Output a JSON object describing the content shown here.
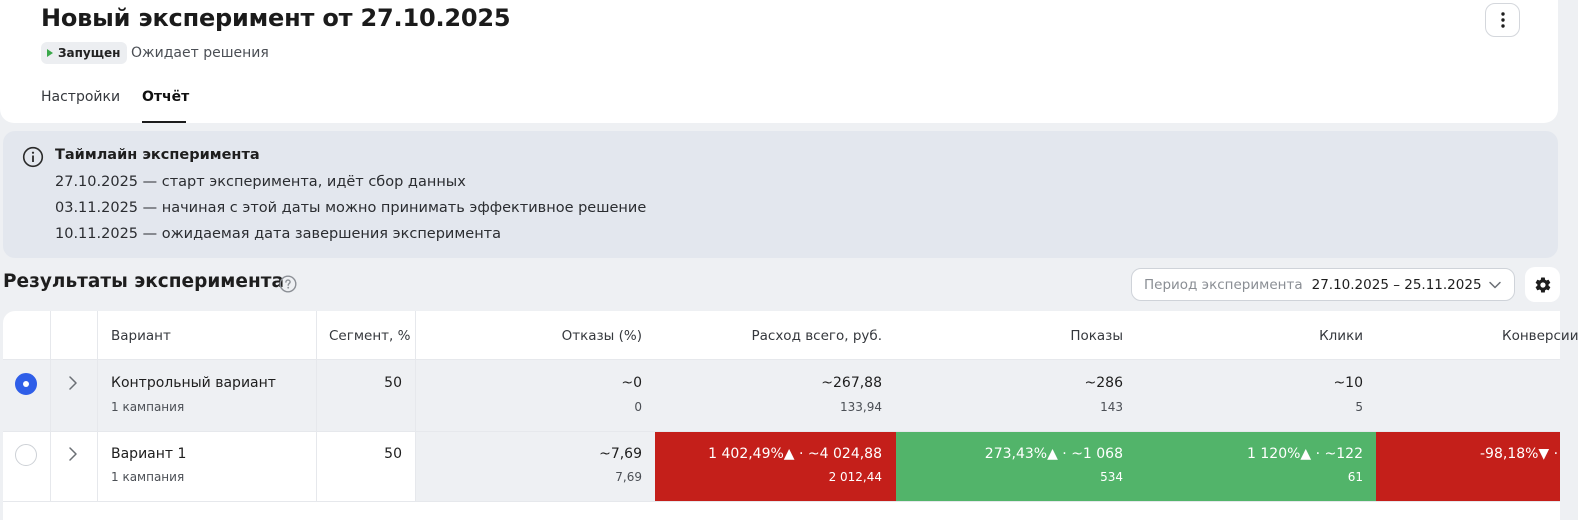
{
  "header": {
    "title": "Новый эксперимент от 27.10.2025",
    "badge_label": "Запущен",
    "status_text": "Ожидает решения"
  },
  "tabs": [
    {
      "label": "Настройки",
      "active": false
    },
    {
      "label": "Отчёт",
      "active": true
    }
  ],
  "timeline": {
    "title": "Таймлайн эксперимента",
    "lines": [
      "27.10.2025 — старт эксперимента, идёт сбор данных",
      "03.11.2025 — начиная с этой даты можно принимать эффективное решение",
      "10.11.2025 — ожидаемая дата завершения эксперимента"
    ]
  },
  "results": {
    "title": "Результаты эксперимента",
    "period_label": "Период эксперимента",
    "period_value": "27.10.2025 – 25.11.2025"
  },
  "table": {
    "columns": [
      "Вариант",
      "Сегмент, %",
      "Отказы (%)",
      "Расход всего, руб.",
      "Показы",
      "Клики",
      "Конверсии"
    ],
    "rows": [
      {
        "selected": true,
        "name": "Контрольный вариант",
        "sub": "1 кампания",
        "segment": "50",
        "bounces": {
          "main": "~0",
          "sub": "0"
        },
        "spend": {
          "main": "~267,88",
          "sub": "133,94"
        },
        "impressions": {
          "main": "~286",
          "sub": "143"
        },
        "clicks": {
          "main": "~10",
          "sub": "5"
        },
        "conversions": {
          "main": "",
          "sub": ""
        }
      },
      {
        "selected": false,
        "name": "Вариант 1",
        "sub": "1 кампания",
        "segment": "50",
        "bounces": {
          "main": "~7,69",
          "sub": "7,69"
        },
        "spend": {
          "main": "1 402,49%▲ · ~4 024,88",
          "sub": "2 012,44"
        },
        "impressions": {
          "main": "273,43%▲ · ~1 068",
          "sub": "534"
        },
        "clicks": {
          "main": "1 120%▲ · ~122",
          "sub": "61"
        },
        "conversions": {
          "main": "-98,18%▼ ·",
          "sub": ""
        }
      }
    ]
  },
  "colors": {
    "accent_blue": "#2f5ee8",
    "negative_red": "#c41f1a",
    "positive_green": "#52b46a",
    "badge_play_green": "#3aa84a"
  },
  "icons": [
    "more-vertical-icon",
    "play-icon",
    "info-icon",
    "question-icon",
    "chevron-down-icon",
    "gear-icon",
    "chevron-right-icon"
  ]
}
